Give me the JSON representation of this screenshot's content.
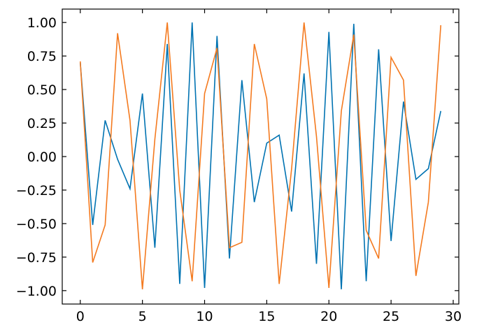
{
  "chart_data": {
    "type": "line",
    "title": "",
    "xlabel": "",
    "ylabel": "",
    "xlim": [
      -1.45,
      30.45
    ],
    "ylim": [
      -1.1,
      1.1
    ],
    "grid": false,
    "x": [
      0,
      1,
      2,
      3,
      4,
      5,
      6,
      7,
      8,
      9,
      10,
      11,
      12,
      13,
      14,
      15,
      16,
      17,
      18,
      19,
      20,
      21,
      22,
      23,
      24,
      25,
      26,
      27,
      28,
      29
    ],
    "x_ticks": [
      0,
      5,
      10,
      15,
      20,
      25,
      30
    ],
    "y_ticks": [
      1.0,
      0.75,
      0.5,
      0.25,
      0.0,
      -0.25,
      -0.5,
      -0.75,
      -1.0
    ],
    "x_tick_labels": [
      "0",
      "5",
      "10",
      "15",
      "20",
      "25",
      "30"
    ],
    "y_tick_labels": [
      "1.00",
      "0.75",
      "0.50",
      "0.25",
      "0.00",
      "−0.25",
      "−0.50",
      "−0.75",
      "−1.00"
    ],
    "series": [
      {
        "color": "#0173b2",
        "values": [
          0.7,
          -0.51,
          0.27,
          -0.02,
          -0.24,
          0.47,
          -0.68,
          0.84,
          -0.95,
          1.0,
          -0.98,
          0.9,
          -0.76,
          0.57,
          -0.34,
          0.1,
          0.16,
          -0.41,
          0.62,
          -0.8,
          0.93,
          -0.99,
          0.99,
          -0.93,
          0.8,
          -0.63,
          0.41,
          -0.17,
          -0.09,
          0.34
        ]
      },
      {
        "color": "#f47a1f",
        "values": [
          0.71,
          -0.79,
          -0.51,
          0.92,
          0.27,
          -0.99,
          0.13,
          1.0,
          -0.25,
          -0.93,
          0.47,
          0.81,
          -0.68,
          -0.64,
          0.84,
          0.43,
          -0.95,
          -0.09,
          1.0,
          0.15,
          -0.98,
          0.34,
          0.91,
          -0.55,
          -0.76,
          0.74,
          0.57,
          -0.89,
          -0.34,
          0.98
        ]
      }
    ]
  }
}
